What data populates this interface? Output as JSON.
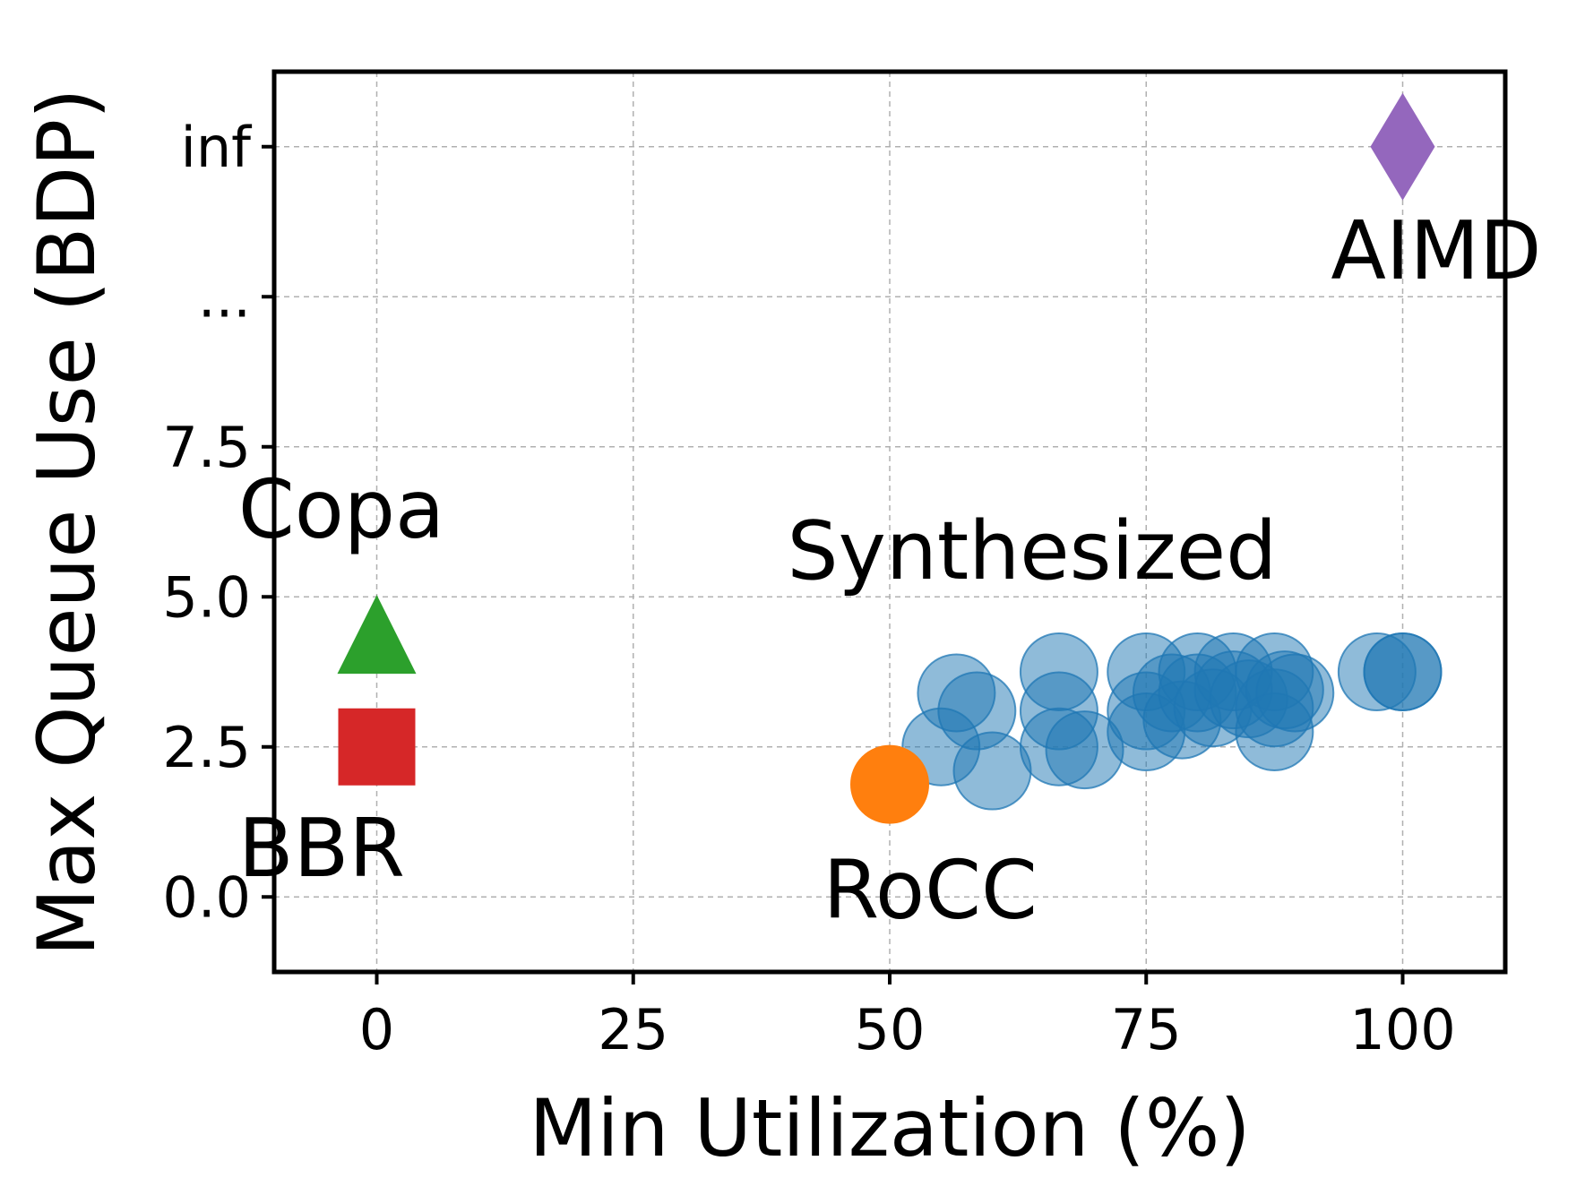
{
  "chart_data": {
    "type": "scatter",
    "title": "",
    "xlabel": "Min Utilization (%)",
    "ylabel": "Max Queue Use (BDP)",
    "xlim": [
      -10,
      110
    ],
    "ylim": [
      -1.25,
      13.75
    ],
    "grid": true,
    "x_ticks": [
      {
        "value": 0,
        "label": "0"
      },
      {
        "value": 25,
        "label": "25"
      },
      {
        "value": 50,
        "label": "50"
      },
      {
        "value": 75,
        "label": "75"
      },
      {
        "value": 100,
        "label": "100"
      }
    ],
    "y_ticks": [
      {
        "value": 0,
        "label": "0.0"
      },
      {
        "value": 2.5,
        "label": "2.5"
      },
      {
        "value": 5.0,
        "label": "5.0"
      },
      {
        "value": 7.5,
        "label": "7.5"
      },
      {
        "value": 10.0,
        "label": "..."
      },
      {
        "value": 12.5,
        "label": "inf"
      }
    ],
    "series": [
      {
        "name": "Synthesized",
        "marker": "circle",
        "color": "#1f77b4",
        "opacity": 0.5,
        "points": [
          {
            "x": 55,
            "y": 2.5
          },
          {
            "x": 56.5,
            "y": 3.4
          },
          {
            "x": 58.5,
            "y": 3.1
          },
          {
            "x": 60,
            "y": 2.1
          },
          {
            "x": 66.5,
            "y": 3.75
          },
          {
            "x": 66.5,
            "y": 3.1
          },
          {
            "x": 66.5,
            "y": 2.5
          },
          {
            "x": 69,
            "y": 2.45
          },
          {
            "x": 75,
            "y": 3.75
          },
          {
            "x": 75,
            "y": 3.1
          },
          {
            "x": 75,
            "y": 2.75
          },
          {
            "x": 77.5,
            "y": 3.4
          },
          {
            "x": 78.5,
            "y": 2.95
          },
          {
            "x": 80,
            "y": 3.75
          },
          {
            "x": 80,
            "y": 3.4
          },
          {
            "x": 81.5,
            "y": 3.15
          },
          {
            "x": 83.5,
            "y": 3.75
          },
          {
            "x": 83.5,
            "y": 3.45
          },
          {
            "x": 85,
            "y": 3.3
          },
          {
            "x": 87.5,
            "y": 3.75
          },
          {
            "x": 87.5,
            "y": 3.15
          },
          {
            "x": 87.5,
            "y": 2.75
          },
          {
            "x": 88.5,
            "y": 3.45
          },
          {
            "x": 89.5,
            "y": 3.4
          },
          {
            "x": 97.5,
            "y": 3.75
          },
          {
            "x": 100,
            "y": 3.75
          },
          {
            "x": 100,
            "y": 3.75
          }
        ]
      },
      {
        "name": "RoCC",
        "marker": "circle",
        "color": "#ff7f0e",
        "opacity": 1,
        "points": [
          {
            "x": 50,
            "y": 1.875
          }
        ]
      },
      {
        "name": "Copa",
        "marker": "triangle",
        "color": "#2ca02c",
        "opacity": 1,
        "points": [
          {
            "x": 0,
            "y": 4.375
          }
        ]
      },
      {
        "name": "BBR",
        "marker": "square",
        "color": "#d62728",
        "opacity": 1,
        "points": [
          {
            "x": 0,
            "y": 2.5
          }
        ]
      },
      {
        "name": "AIMD",
        "marker": "diamond",
        "color": "#9467bd",
        "opacity": 1,
        "points": [
          {
            "x": 100,
            "y": 12.5
          }
        ]
      }
    ],
    "annotations": [
      {
        "text": "Copa",
        "x": -13.5,
        "y": 6.0
      },
      {
        "text": "Synthesized",
        "x": 40,
        "y": 5.3
      },
      {
        "text": "BBR",
        "x": -13.5,
        "y": 0.35
      },
      {
        "text": "RoCC",
        "x": 43.5,
        "y": -0.35
      },
      {
        "text": "AIMD",
        "x": 93,
        "y": 10.3
      }
    ]
  }
}
